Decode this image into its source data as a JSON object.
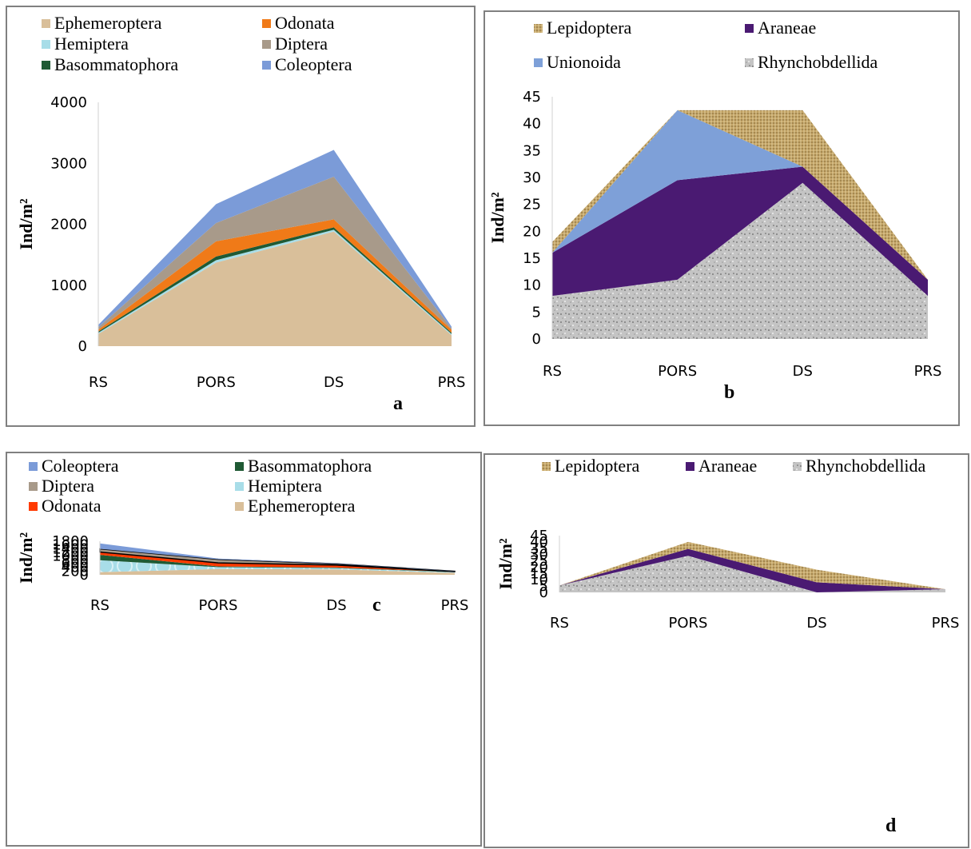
{
  "chart_data": [
    {
      "panel_label": "a",
      "type": "area",
      "stacked": true,
      "categories": [
        "RS",
        "PORS",
        "DS",
        "PRS"
      ],
      "ylabel": "Ind/m²",
      "ylim": [
        0,
        4000
      ],
      "yticks": [
        "0",
        "1000",
        "2000",
        "3000",
        "4000"
      ],
      "legend_position": "top",
      "legend": [
        "Ephemeroptera",
        "Hemiptera",
        "Basommatophora",
        "Odonata",
        "Diptera",
        "Coleoptera"
      ],
      "series": [
        {
          "name": "Ephemeroptera",
          "color": "#d9bf9a",
          "values": [
            200,
            1370,
            1880,
            180
          ]
        },
        {
          "name": "Hemiptera",
          "color": "#a8dde8",
          "values": [
            20,
            40,
            30,
            20
          ]
        },
        {
          "name": "Basommatophora",
          "color": "#1f5a34",
          "values": [
            20,
            60,
            40,
            20
          ]
        },
        {
          "name": "Odonata",
          "color": "#f07a18",
          "values": [
            30,
            250,
            130,
            50
          ]
        },
        {
          "name": "Diptera",
          "color": "#a89a8a",
          "values": [
            40,
            300,
            700,
            20
          ]
        },
        {
          "name": "Coleoptera",
          "color": "#7b9bd8",
          "values": [
            40,
            310,
            440,
            30
          ]
        }
      ]
    },
    {
      "panel_label": "b",
      "type": "area",
      "stacked": true,
      "categories": [
        "RS",
        "PORS",
        "DS",
        "PRS"
      ],
      "ylabel": "Ind/m²",
      "ylim": [
        0,
        45
      ],
      "yticks": [
        "0",
        "5",
        "10",
        "15",
        "20",
        "25",
        "30",
        "35",
        "40",
        "45"
      ],
      "legend_position": "top",
      "legend": [
        "Lepidoptera",
        "Unionoida",
        "Araneae",
        "Rhynchobdellida"
      ],
      "series": [
        {
          "name": "Rhynchobdellida",
          "color": "#c8c8c8",
          "values": [
            8,
            11,
            29,
            8
          ]
        },
        {
          "name": "Araneae",
          "color": "#4a1a72",
          "values": [
            8,
            18.5,
            3,
            3
          ]
        },
        {
          "name": "Unionoida",
          "color": "#7ea0d8",
          "values": [
            0,
            13,
            0,
            0
          ]
        },
        {
          "name": "Lepidoptera",
          "color": "#c6a76a",
          "values": [
            2,
            0,
            10.5,
            0
          ]
        }
      ]
    },
    {
      "panel_label": "c",
      "type": "area",
      "stacked": true,
      "categories": [
        "RS",
        "PORS",
        "DS",
        "PRS"
      ],
      "ylabel": "Ind/m²",
      "ylim": [
        0,
        1800
      ],
      "yticks": [
        "0",
        "200",
        "400",
        "600",
        "800",
        "1000",
        "1200",
        "1400",
        "1600",
        "1800"
      ],
      "legend_position": "top",
      "legend": [
        "Coleoptera",
        "Diptera",
        "Odonata",
        "Basommatophora",
        "Hemiptera",
        "Ephemeroptera"
      ],
      "series": [
        {
          "name": "Ephemeroptera",
          "color": "#d9bf9a",
          "values": [
            140,
            310,
            290,
            100
          ]
        },
        {
          "name": "Hemiptera",
          "color": "#a8dde8",
          "values": [
            640,
            100,
            70,
            40
          ]
        },
        {
          "name": "Basommatophora",
          "color": "#1f5a34",
          "values": [
            290,
            40,
            30,
            20
          ]
        },
        {
          "name": "Odonata",
          "color": "#ff3a00",
          "values": [
            150,
            190,
            130,
            10
          ]
        },
        {
          "name": "Diptera",
          "color": "#a89a8a",
          "values": [
            170,
            190,
            70,
            20
          ]
        },
        {
          "name": "Coleoptera",
          "color": "#7b9bd8",
          "values": [
            290,
            40,
            20,
            10
          ]
        }
      ]
    },
    {
      "panel_label": "d",
      "type": "area",
      "stacked": true,
      "categories": [
        "RS",
        "PORS",
        "DS",
        "PRS"
      ],
      "ylabel": "Ind/m²",
      "ylim": [
        0,
        45
      ],
      "yticks": [
        "0",
        "5",
        "10",
        "15",
        "20",
        "25",
        "30",
        "35",
        "40",
        "45"
      ],
      "legend_position": "top",
      "legend": [
        "Lepidoptera",
        "Araneae",
        "Rhynchobdellida"
      ],
      "series": [
        {
          "name": "Rhynchobdellida",
          "color": "#c8c8c8",
          "values": [
            5.5,
            29,
            0,
            2.5
          ]
        },
        {
          "name": "Araneae",
          "color": "#4a1a72",
          "values": [
            0,
            5.5,
            8,
            0
          ]
        },
        {
          "name": "Lepidoptera",
          "color": "#c6a76a",
          "values": [
            0,
            5.5,
            10,
            0
          ]
        }
      ]
    }
  ]
}
